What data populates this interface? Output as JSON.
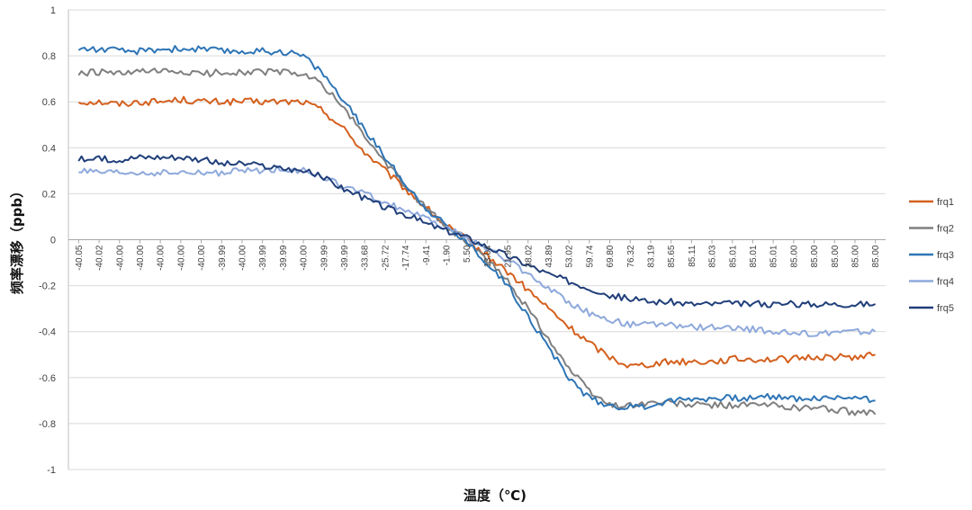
{
  "chart_data": {
    "type": "line",
    "title": "",
    "xlabel": "温度（℃)",
    "ylabel": "频率漂移（ppb）",
    "ylim": [
      -1,
      1
    ],
    "yticks": [
      1,
      0.8,
      0.6,
      0.4,
      0.2,
      0,
      -0.2,
      -0.4,
      -0.6,
      -0.8,
      -1
    ],
    "ytick_labels": [
      "1",
      "0.8",
      "0.6",
      "0.4",
      "0.2",
      "0",
      "-0.2",
      "-0.4",
      "-0.6",
      "-0.8",
      "-1"
    ],
    "grid": "horizontal",
    "legend_position": "right",
    "x_categories": [
      "-40.05",
      "-40.02",
      "-40.00",
      "-40.00",
      "-40.00",
      "-40.00",
      "-40.00",
      "-39.99",
      "-40.00",
      "-39.99",
      "-39.99",
      "-40.00",
      "-39.99",
      "-39.99",
      "-33.68",
      "-25.72",
      "-17.74",
      "-9.41",
      "-1.90",
      "5.50",
      "13.04",
      "21.95",
      "38.02",
      "43.89",
      "53.02",
      "59.74",
      "69.80",
      "76.32",
      "83.19",
      "85.65",
      "85.11",
      "85.03",
      "85.01",
      "85.01",
      "85.01",
      "85.00",
      "85.00",
      "85.00",
      "85.00",
      "85.00"
    ],
    "series": [
      {
        "name": "frq1",
        "color": "#d4601e",
        "values": [
          0.6,
          0.6,
          0.59,
          0.6,
          0.6,
          0.61,
          0.6,
          0.6,
          0.6,
          0.6,
          0.6,
          0.6,
          0.56,
          0.48,
          0.38,
          0.3,
          0.22,
          0.14,
          0.06,
          0.0,
          -0.07,
          -0.14,
          -0.22,
          -0.3,
          -0.38,
          -0.45,
          -0.51,
          -0.55,
          -0.54,
          -0.53,
          -0.53,
          -0.53,
          -0.52,
          -0.52,
          -0.52,
          -0.52,
          -0.51,
          -0.51,
          -0.51,
          -0.5
        ]
      },
      {
        "name": "frq2",
        "color": "#7f7f7f",
        "values": [
          0.72,
          0.73,
          0.72,
          0.73,
          0.73,
          0.73,
          0.72,
          0.73,
          0.73,
          0.73,
          0.73,
          0.72,
          0.67,
          0.57,
          0.45,
          0.34,
          0.23,
          0.14,
          0.06,
          -0.01,
          -0.09,
          -0.18,
          -0.3,
          -0.43,
          -0.56,
          -0.66,
          -0.72,
          -0.72,
          -0.71,
          -0.71,
          -0.72,
          -0.72,
          -0.72,
          -0.72,
          -0.72,
          -0.73,
          -0.73,
          -0.74,
          -0.75,
          -0.76
        ]
      },
      {
        "name": "frq3",
        "color": "#2e75b6",
        "values": [
          0.83,
          0.83,
          0.82,
          0.82,
          0.83,
          0.83,
          0.83,
          0.82,
          0.82,
          0.82,
          0.82,
          0.8,
          0.72,
          0.6,
          0.48,
          0.36,
          0.24,
          0.14,
          0.06,
          -0.01,
          -0.1,
          -0.2,
          -0.33,
          -0.47,
          -0.6,
          -0.69,
          -0.72,
          -0.73,
          -0.72,
          -0.7,
          -0.69,
          -0.69,
          -0.69,
          -0.69,
          -0.68,
          -0.69,
          -0.69,
          -0.69,
          -0.68,
          -0.7
        ]
      },
      {
        "name": "frq4",
        "color": "#8ea9db",
        "values": [
          0.3,
          0.29,
          0.29,
          0.29,
          0.29,
          0.29,
          0.29,
          0.29,
          0.3,
          0.3,
          0.31,
          0.3,
          0.27,
          0.23,
          0.2,
          0.16,
          0.13,
          0.09,
          0.05,
          0.01,
          -0.04,
          -0.09,
          -0.15,
          -0.21,
          -0.27,
          -0.32,
          -0.35,
          -0.37,
          -0.37,
          -0.37,
          -0.38,
          -0.38,
          -0.39,
          -0.39,
          -0.4,
          -0.41,
          -0.41,
          -0.4,
          -0.4,
          -0.4
        ]
      },
      {
        "name": "frq5",
        "color": "#203f7a",
        "values": [
          0.35,
          0.35,
          0.35,
          0.36,
          0.36,
          0.36,
          0.35,
          0.33,
          0.33,
          0.32,
          0.31,
          0.3,
          0.27,
          0.22,
          0.18,
          0.14,
          0.11,
          0.07,
          0.04,
          0.01,
          -0.03,
          -0.07,
          -0.11,
          -0.15,
          -0.18,
          -0.21,
          -0.24,
          -0.26,
          -0.27,
          -0.27,
          -0.28,
          -0.28,
          -0.28,
          -0.28,
          -0.28,
          -0.28,
          -0.28,
          -0.28,
          -0.28,
          -0.28
        ]
      }
    ]
  }
}
